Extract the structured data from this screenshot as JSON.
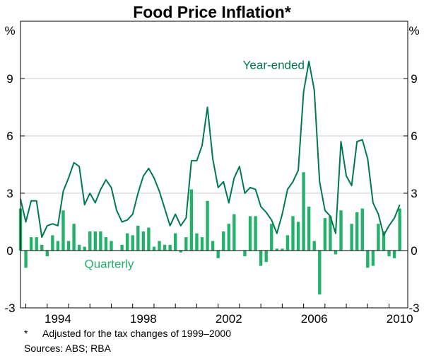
{
  "chart_data": {
    "type": "bar+line",
    "title": "Food Price Inflation*",
    "unit_left": "%",
    "unit_right": "%",
    "ylim": [
      -3,
      12
    ],
    "yticks": [
      "-3",
      "0",
      "3",
      "6",
      "9"
    ],
    "ytick_values": [
      -3,
      0,
      3,
      6,
      9
    ],
    "xticks": [
      "1994",
      "1998",
      "2002",
      "2006",
      "2010"
    ],
    "xtick_values": [
      1994,
      1998,
      2002,
      2006,
      2010
    ],
    "xlim": [
      1992.75,
      2010.875
    ],
    "colors": {
      "line": "#007a4d",
      "bars": "#22b26a",
      "frame": "#000000",
      "grid": "#cccccc"
    },
    "series": [
      {
        "name": "Year-ended",
        "kind": "line",
        "x": [
          1992.75,
          1993.0,
          1993.25,
          1993.5,
          1993.75,
          1994.0,
          1994.25,
          1994.5,
          1994.75,
          1995.0,
          1995.25,
          1995.5,
          1995.75,
          1996.0,
          1996.25,
          1996.5,
          1996.75,
          1997.0,
          1997.25,
          1997.5,
          1997.75,
          1998.0,
          1998.25,
          1998.5,
          1998.75,
          1999.0,
          1999.25,
          1999.5,
          1999.75,
          2000.0,
          2000.25,
          2000.5,
          2000.75,
          2001.0,
          2001.25,
          2001.5,
          2001.75,
          2002.0,
          2002.25,
          2002.5,
          2002.75,
          2003.0,
          2003.25,
          2003.5,
          2003.75,
          2004.0,
          2004.25,
          2004.5,
          2004.75,
          2005.0,
          2005.25,
          2005.5,
          2005.75,
          2006.0,
          2006.25,
          2006.5,
          2006.75,
          2007.0,
          2007.25,
          2007.5,
          2007.75,
          2008.0,
          2008.25,
          2008.5,
          2008.75,
          2009.0,
          2009.25,
          2009.5,
          2009.75,
          2010.0,
          2010.25,
          2010.5
        ],
        "values": [
          2.7,
          1.5,
          2.6,
          2.6,
          0.7,
          1.3,
          1.4,
          1.3,
          3.1,
          3.8,
          4.6,
          4.4,
          2.4,
          3.0,
          2.5,
          3.2,
          3.7,
          3.3,
          2.1,
          1.5,
          1.6,
          1.9,
          3.0,
          3.9,
          4.3,
          3.8,
          3.1,
          2.2,
          1.3,
          1.9,
          1.3,
          1.7,
          4.7,
          4.7,
          5.5,
          7.5,
          4.8,
          3.3,
          3.6,
          2.5,
          3.8,
          4.4,
          3.0,
          3.3,
          3.2,
          2.3,
          2.0,
          1.6,
          0.9,
          1.9,
          3.2,
          3.6,
          4.2,
          8.3,
          9.9,
          8.4,
          3.6,
          2.1,
          1.8,
          0.9,
          5.7,
          3.9,
          3.4,
          5.7,
          5.8,
          4.8,
          2.5,
          1.9,
          0.8,
          1.3,
          1.7,
          2.4
        ]
      },
      {
        "name": "Quarterly",
        "kind": "bar",
        "x": [
          1992.75,
          1993.0,
          1993.25,
          1993.5,
          1993.75,
          1994.0,
          1994.25,
          1994.5,
          1994.75,
          1995.0,
          1995.25,
          1995.5,
          1995.75,
          1996.0,
          1996.25,
          1996.5,
          1996.75,
          1997.0,
          1997.25,
          1997.5,
          1997.75,
          1998.0,
          1998.25,
          1998.5,
          1998.75,
          1999.0,
          1999.25,
          1999.5,
          1999.75,
          2000.0,
          2000.25,
          2000.5,
          2000.75,
          2001.0,
          2001.25,
          2001.5,
          2001.75,
          2002.0,
          2002.25,
          2002.5,
          2002.75,
          2003.0,
          2003.25,
          2003.5,
          2003.75,
          2004.0,
          2004.25,
          2004.5,
          2004.75,
          2005.0,
          2005.25,
          2005.5,
          2005.75,
          2006.0,
          2006.25,
          2006.5,
          2006.75,
          2007.0,
          2007.25,
          2007.5,
          2007.75,
          2008.0,
          2008.25,
          2008.5,
          2008.75,
          2009.0,
          2009.25,
          2009.5,
          2009.75,
          2010.0,
          2010.25,
          2010.5
        ],
        "values": [
          2.2,
          -0.9,
          0.7,
          0.7,
          0.3,
          -0.3,
          0.8,
          0.5,
          2.1,
          0.5,
          1.4,
          0.3,
          0.2,
          1.0,
          1.0,
          1.0,
          0.7,
          0.5,
          0.0,
          0.3,
          0.9,
          0.8,
          1.3,
          1.0,
          1.2,
          0.2,
          0.5,
          0.3,
          0.3,
          0.9,
          -0.1,
          0.7,
          3.2,
          0.9,
          0.7,
          2.6,
          0.5,
          -0.4,
          1.0,
          1.4,
          1.9,
          0.0,
          -0.3,
          1.8,
          1.8,
          -0.8,
          -0.6,
          1.4,
          0.1,
          0.1,
          0.8,
          1.8,
          1.5,
          4.1,
          2.3,
          0.5,
          -2.3,
          1.7,
          1.8,
          -0.2,
          2.1,
          0.0,
          1.4,
          2.0,
          2.2,
          -0.9,
          -0.8,
          1.4,
          1.0,
          -0.3,
          -0.4,
          2.2
        ]
      }
    ],
    "annotations": [
      {
        "text": "Year-ended",
        "series": "Year-ended",
        "x": 2004.6,
        "y": 9.5
      },
      {
        "text": "Quarterly",
        "series": "Quarterly",
        "x": 1996.9,
        "y": -0.9
      }
    ]
  },
  "footnotes": {
    "note_marker": "*",
    "note_text": "Adjusted for the tax changes of 1999–2000",
    "sources": "Sources: ABS; RBA"
  }
}
